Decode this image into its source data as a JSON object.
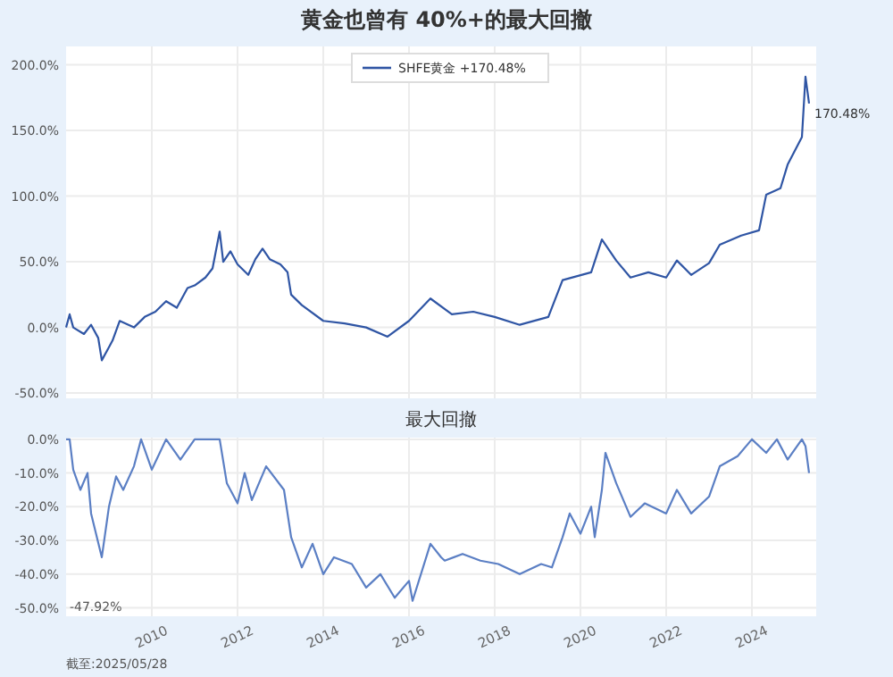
{
  "chart_data": [
    {
      "type": "line",
      "title": "黄金也曾有 40%+的最大回撤",
      "x": [
        "2008-01",
        "2008-02",
        "2008-03",
        "2008-06",
        "2008-08",
        "2008-10",
        "2008-11",
        "2009-01",
        "2009-02",
        "2009-04",
        "2009-08",
        "2009-11",
        "2010-02",
        "2010-05",
        "2010-08",
        "2010-11",
        "2011-01",
        "2011-04",
        "2011-06",
        "2011-08",
        "2011-09",
        "2011-11",
        "2012-01",
        "2012-04",
        "2012-06",
        "2012-08",
        "2012-10",
        "2013-01",
        "2013-03",
        "2013-04",
        "2013-07",
        "2014-01",
        "2014-07",
        "2015-01",
        "2015-07",
        "2016-01",
        "2016-07",
        "2017-01",
        "2017-07",
        "2018-01",
        "2018-08",
        "2019-04",
        "2019-08",
        "2020-04",
        "2020-07",
        "2020-11",
        "2021-03",
        "2021-08",
        "2022-01",
        "2022-04",
        "2022-08",
        "2023-01",
        "2023-04",
        "2023-10",
        "2024-03",
        "2024-05",
        "2024-09",
        "2024-11",
        "2025-03",
        "2025-04",
        "2025-05"
      ],
      "series": [
        {
          "name": "SHFE黄金  +170.48%",
          "color": "#2f55a4",
          "values": [
            0,
            10,
            0,
            -5,
            2,
            -8,
            -25,
            -15,
            -10,
            5,
            0,
            8,
            12,
            20,
            15,
            30,
            32,
            38,
            45,
            73,
            50,
            58,
            48,
            40,
            52,
            60,
            52,
            48,
            42,
            25,
            17,
            5,
            3,
            0,
            -7,
            5,
            22,
            10,
            12,
            8,
            2,
            8,
            36,
            42,
            67,
            51,
            38,
            42,
            38,
            51,
            40,
            49,
            63,
            70,
            74,
            101,
            106,
            124,
            145,
            191,
            170.48
          ]
        }
      ],
      "xlim": [
        "2008-01",
        "2025-07"
      ],
      "xticks": [
        {
          "value": "2010",
          "label": null
        },
        {
          "value": "2012",
          "label": null
        },
        {
          "value": "2014",
          "label": null
        },
        {
          "value": "2016",
          "label": null
        },
        {
          "value": "2018",
          "label": null
        },
        {
          "value": "2020",
          "label": null
        },
        {
          "value": "2022",
          "label": null
        },
        {
          "value": "2024",
          "label": null
        }
      ],
      "ylim": [
        -54,
        214
      ],
      "yticks": [
        {
          "value": -50,
          "label": "-50.0%"
        },
        {
          "value": 0,
          "label": "0.0%"
        },
        {
          "value": 50,
          "label": "50.0%"
        },
        {
          "value": 100,
          "label": "100.0%"
        },
        {
          "value": 150,
          "label": "150.0%"
        },
        {
          "value": 200,
          "label": "200.0%"
        }
      ],
      "grid": true,
      "legend": "top right",
      "tick_labels": "y",
      "annotations": [
        {
          "text": "170.48%",
          "x": "2025-05",
          "y": 170.48
        }
      ]
    },
    {
      "type": "line",
      "title": "最大回撤",
      "x": [
        "2008-01",
        "2008-02",
        "2008-03",
        "2008-05",
        "2008-07",
        "2008-08",
        "2008-11",
        "2009-01",
        "2009-03",
        "2009-05",
        "2009-08",
        "2009-10",
        "2010-01",
        "2010-05",
        "2010-09",
        "2011-01",
        "2011-05",
        "2011-08",
        "2011-10",
        "2012-01",
        "2012-03",
        "2012-05",
        "2012-09",
        "2013-02",
        "2013-04",
        "2013-07",
        "2013-10",
        "2014-01",
        "2014-04",
        "2014-09",
        "2015-01",
        "2015-05",
        "2015-09",
        "2016-01",
        "2016-02",
        "2016-07",
        "2016-10",
        "2016-11",
        "2017-04",
        "2017-09",
        "2018-02",
        "2018-08",
        "2019-02",
        "2019-05",
        "2019-08",
        "2019-10",
        "2020-01",
        "2020-04",
        "2020-05",
        "2020-07",
        "2020-08",
        "2020-11",
        "2021-03",
        "2021-07",
        "2022-01",
        "2022-04",
        "2022-08",
        "2023-01",
        "2023-04",
        "2023-09",
        "2024-01",
        "2024-05",
        "2024-08",
        "2024-11",
        "2025-03",
        "2025-04",
        "2025-05"
      ],
      "series": [
        {
          "color": "#5b7fc4",
          "values": [
            0,
            0,
            -9,
            -15,
            -10,
            -22,
            -35,
            -20,
            -11,
            -15,
            -8,
            0,
            -9,
            0,
            -6,
            0,
            0,
            0,
            -13,
            -19,
            -10,
            -18,
            -8,
            -15,
            -29,
            -38,
            -31,
            -40,
            -35,
            -37,
            -44,
            -40,
            -47,
            -42,
            -47.92,
            -31,
            -35,
            -36,
            -34,
            -36,
            -37,
            -40,
            -37,
            -38,
            -29,
            -22,
            -28,
            -20,
            -29,
            -15,
            -4,
            -13,
            -23,
            -19,
            -22,
            -15,
            -22,
            -17,
            -8,
            -5,
            0,
            -4,
            0,
            -6,
            0,
            -2,
            -10
          ]
        }
      ],
      "xlim": [
        "2008-01",
        "2025-07"
      ],
      "xticks": [
        "2010",
        "2012",
        "2014",
        "2016",
        "2018",
        "2020",
        "2022",
        "2024"
      ],
      "ylim": [
        -52.5,
        0.5
      ],
      "yticks": [
        {
          "value": -50,
          "label": "-50.0%"
        },
        {
          "value": -40,
          "label": "-40.0%"
        },
        {
          "value": -30,
          "label": "-30.0%"
        },
        {
          "value": -20,
          "label": "-20.0%"
        },
        {
          "value": -10,
          "label": "-10.0%"
        },
        {
          "value": 0,
          "label": "0.0%"
        }
      ],
      "grid": true,
      "annotations": [
        "-47.92%",
        "截至:2025/05/28"
      ]
    }
  ]
}
